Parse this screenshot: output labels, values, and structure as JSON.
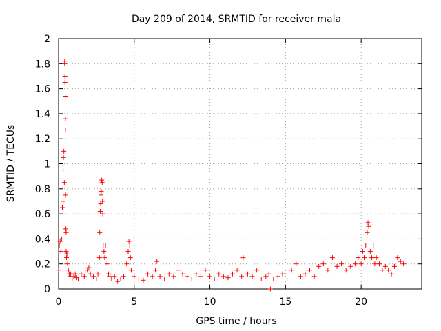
{
  "chart_data": {
    "type": "scatter",
    "title": "Day 209 of 2014, SRMTID for receiver mala",
    "xlabel": "GPS time / hours",
    "ylabel": "SRMTID / TECUs",
    "xlim": [
      0,
      24
    ],
    "ylim": [
      0,
      2
    ],
    "x_ticks": [
      "0",
      "5",
      "10",
      "15",
      "20"
    ],
    "y_ticks": [
      "0",
      "0.2",
      "0.4",
      "0.6",
      "0.8",
      "1",
      "1.2",
      "1.4",
      "1.6",
      "1.8",
      "2"
    ],
    "grid": true,
    "marker": "+",
    "color": "#ff0000",
    "series": [
      {
        "x": [
          0.0,
          0.05,
          0.1,
          0.15,
          0.2,
          0.25,
          0.3,
          0.3,
          0.32,
          0.35,
          0.38,
          0.4,
          0.4,
          0.42,
          0.42,
          0.44,
          0.45,
          0.45,
          0.46,
          0.48,
          0.5,
          0.5,
          0.52,
          0.55,
          0.6,
          0.65,
          0.7,
          0.75,
          0.8,
          0.9,
          1.0,
          1.1,
          1.2,
          1.3,
          1.5,
          1.7,
          1.9,
          2.0,
          2.1,
          2.3,
          2.5,
          2.6,
          2.7,
          2.72,
          2.75,
          2.78,
          2.8,
          2.82,
          2.85,
          2.88,
          2.9,
          2.92,
          2.95,
          3.0,
          3.05,
          3.1,
          3.2,
          3.3,
          3.4,
          3.5,
          3.7,
          3.9,
          4.1,
          4.3,
          4.5,
          4.6,
          4.65,
          4.7,
          4.75,
          4.8,
          5.0,
          5.3,
          5.6,
          5.9,
          6.2,
          6.4,
          6.5,
          6.7,
          7.0,
          7.3,
          7.6,
          7.9,
          8.2,
          8.5,
          8.8,
          9.1,
          9.4,
          9.7,
          10.0,
          10.3,
          10.6,
          10.9,
          11.2,
          11.5,
          11.8,
          12.1,
          12.2,
          12.5,
          12.8,
          13.1,
          13.4,
          13.7,
          13.9,
          14.0,
          14.2,
          14.5,
          14.8,
          15.1,
          15.4,
          15.7,
          16.0,
          16.3,
          16.6,
          16.9,
          17.2,
          17.5,
          17.8,
          18.1,
          18.4,
          18.7,
          19.0,
          19.3,
          19.6,
          19.8,
          20.0,
          20.1,
          20.2,
          20.3,
          20.4,
          20.45,
          20.5,
          20.6,
          20.7,
          20.8,
          20.9,
          21.0,
          21.2,
          21.4,
          21.6,
          21.8,
          22.0,
          22.2,
          22.4,
          22.6,
          22.8
        ],
        "y": [
          0.15,
          0.35,
          0.38,
          0.3,
          0.4,
          0.65,
          0.7,
          0.95,
          1.05,
          1.1,
          0.85,
          1.8,
          1.82,
          1.7,
          1.65,
          1.54,
          1.36,
          1.27,
          0.75,
          0.48,
          0.45,
          0.3,
          0.25,
          0.28,
          0.2,
          0.15,
          0.12,
          0.1,
          0.12,
          0.08,
          0.1,
          0.12,
          0.09,
          0.08,
          0.12,
          0.1,
          0.15,
          0.17,
          0.12,
          0.1,
          0.08,
          0.12,
          0.25,
          0.45,
          0.62,
          0.68,
          0.75,
          0.78,
          0.87,
          0.85,
          0.7,
          0.6,
          0.35,
          0.3,
          0.25,
          0.35,
          0.2,
          0.12,
          0.1,
          0.08,
          0.1,
          0.06,
          0.08,
          0.1,
          0.2,
          0.3,
          0.38,
          0.35,
          0.25,
          0.15,
          0.1,
          0.08,
          0.07,
          0.12,
          0.1,
          0.15,
          0.22,
          0.1,
          0.08,
          0.12,
          0.1,
          0.15,
          0.12,
          0.1,
          0.08,
          0.12,
          0.1,
          0.15,
          0.1,
          0.08,
          0.12,
          0.1,
          0.09,
          0.12,
          0.15,
          0.1,
          0.25,
          0.12,
          0.1,
          0.15,
          0.08,
          0.1,
          0.12,
          0.0,
          0.08,
          0.1,
          0.12,
          0.08,
          0.15,
          0.2,
          0.1,
          0.12,
          0.15,
          0.1,
          0.18,
          0.2,
          0.15,
          0.25,
          0.18,
          0.2,
          0.15,
          0.18,
          0.2,
          0.25,
          0.2,
          0.3,
          0.25,
          0.35,
          0.45,
          0.53,
          0.5,
          0.3,
          0.25,
          0.35,
          0.2,
          0.25,
          0.2,
          0.15,
          0.18,
          0.15,
          0.12,
          0.18,
          0.25,
          0.22,
          0.2
        ]
      }
    ]
  }
}
